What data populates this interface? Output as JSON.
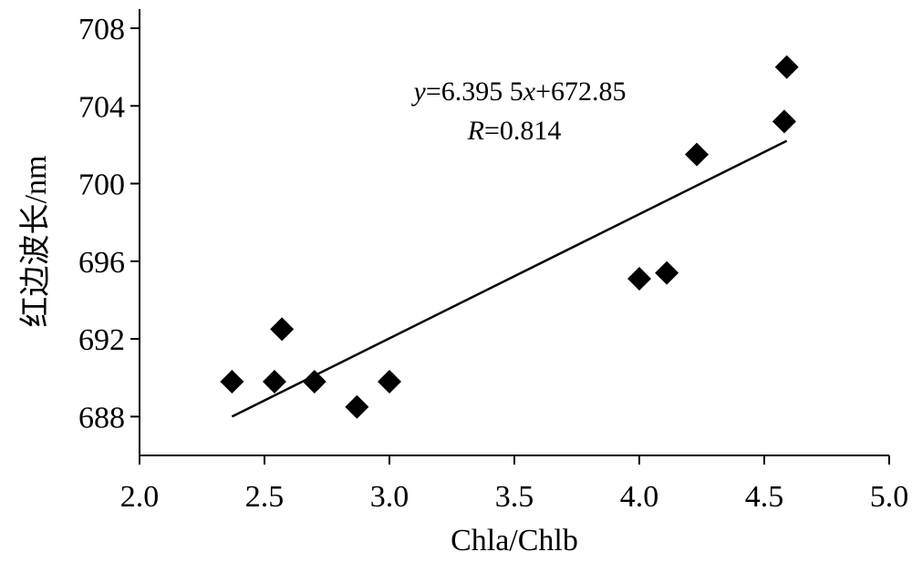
{
  "chart_data": {
    "type": "scatter",
    "x_label": "Chla/Chlb",
    "y_label": "红边波长/nm",
    "annotation_lines": [
      [
        "y",
        "=6.395 5",
        "x",
        "+672.85"
      ],
      [
        "R",
        "=0.814"
      ]
    ],
    "series": [
      {
        "type": "scatter",
        "color": "#000000",
        "x": [
          2.37,
          2.54,
          2.57,
          2.7,
          2.87,
          3.0,
          4.0,
          4.11,
          4.23,
          4.58,
          4.59
        ],
        "values": [
          689.8,
          689.8,
          692.5,
          689.8,
          688.5,
          689.8,
          695.1,
          695.4,
          701.5,
          703.2,
          706.0
        ]
      },
      {
        "type": "line",
        "color": "#000000",
        "x": [
          2.37,
          4.59
        ],
        "values": [
          688.0,
          702.2
        ]
      }
    ],
    "xlim": [
      2.0,
      5.0
    ],
    "xticks": [
      {
        "value": 2.0,
        "label": "2.0"
      },
      2.5,
      {
        "value": 3.0,
        "label": "3.0"
      },
      3.5,
      {
        "value": 4.0,
        "label": "4.0"
      },
      4.5,
      {
        "value": 5.0,
        "label": "5.0"
      }
    ],
    "ylim": [
      686,
      708
    ],
    "yticks": [
      688,
      692,
      696,
      700,
      704,
      708
    ]
  }
}
